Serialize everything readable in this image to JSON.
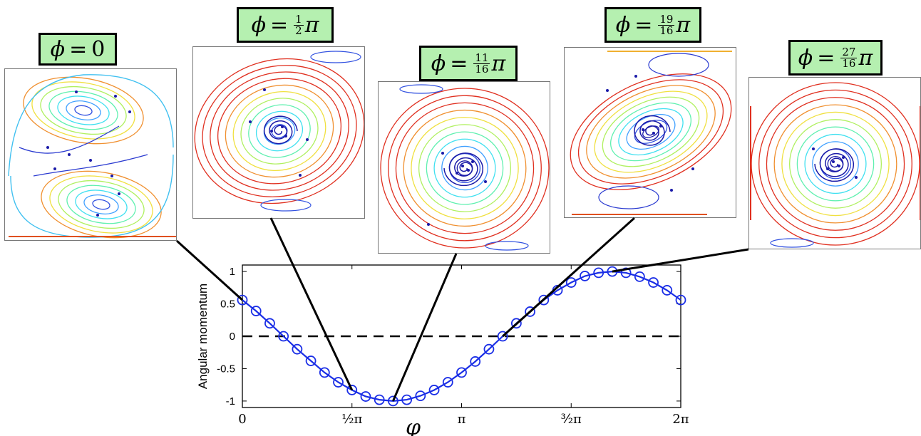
{
  "chart_data": {
    "type": "line",
    "xlabel": "φ",
    "ylabel": "Angular momentum",
    "xlim": [
      0,
      6.2832
    ],
    "ylim": [
      -1.1,
      1.1
    ],
    "x_ticks": [
      {
        "value": 0,
        "label": "0"
      },
      {
        "value": 1.5708,
        "label": "½π"
      },
      {
        "value": 3.1416,
        "label": "π"
      },
      {
        "value": 4.7124,
        "label": "³⁄₂π"
      },
      {
        "value": 6.2832,
        "label": "2π"
      }
    ],
    "y_ticks": [
      {
        "value": 1,
        "label": "1"
      },
      {
        "value": 0.5,
        "label": "0.5"
      },
      {
        "value": 0,
        "label": "0"
      },
      {
        "value": -0.5,
        "label": "-0.5"
      },
      {
        "value": -1,
        "label": "-1"
      }
    ],
    "zero_line": "dashed",
    "series": [
      {
        "color": "#1a2ee6",
        "marker": "open-circle",
        "x": [
          0,
          0.19635,
          0.3927,
          0.58905,
          0.7854,
          0.98175,
          1.1781,
          1.37445,
          1.5708,
          1.76715,
          1.9635,
          2.15985,
          2.3562,
          2.55255,
          2.7489,
          2.94525,
          3.1416,
          3.33795,
          3.5343,
          3.73065,
          3.927,
          4.12335,
          4.3197,
          4.51605,
          4.7124,
          4.90875,
          5.1051,
          5.30145,
          5.4978,
          5.69415,
          5.8905,
          6.08685,
          6.2832
        ],
        "y": [
          0.56,
          0.39,
          0.2,
          0.0,
          -0.2,
          -0.38,
          -0.56,
          -0.71,
          -0.83,
          -0.93,
          -0.98,
          -1.0,
          -0.98,
          -0.92,
          -0.83,
          -0.71,
          -0.56,
          -0.39,
          -0.2,
          0.0,
          0.2,
          0.38,
          0.56,
          0.71,
          0.83,
          0.93,
          0.98,
          1.0,
          0.98,
          0.92,
          0.83,
          0.71,
          0.56
        ]
      }
    ]
  },
  "snapshots": [
    {
      "id": "phi-0",
      "phi_value": 0,
      "label_lhs": "ϕ",
      "label_eq": "=",
      "num": "",
      "den": "",
      "rhs": "0"
    },
    {
      "id": "phi-half-pi",
      "phi_value": 1.5708,
      "label_lhs": "ϕ",
      "label_eq": "=",
      "num": "1",
      "den": "2",
      "rhs": "π"
    },
    {
      "id": "phi-11-16-pi",
      "phi_value": 2.15985,
      "label_lhs": "ϕ",
      "label_eq": "=",
      "num": "11",
      "den": "16",
      "rhs": "π"
    },
    {
      "id": "phi-19-16-pi",
      "phi_value": 3.73065,
      "label_lhs": "ϕ",
      "label_eq": "=",
      "num": "19",
      "den": "16",
      "rhs": "π"
    },
    {
      "id": "phi-27-16-pi",
      "phi_value": 5.30145,
      "label_lhs": "ϕ",
      "label_eq": "=",
      "num": "27",
      "den": "16",
      "rhs": "π"
    }
  ]
}
